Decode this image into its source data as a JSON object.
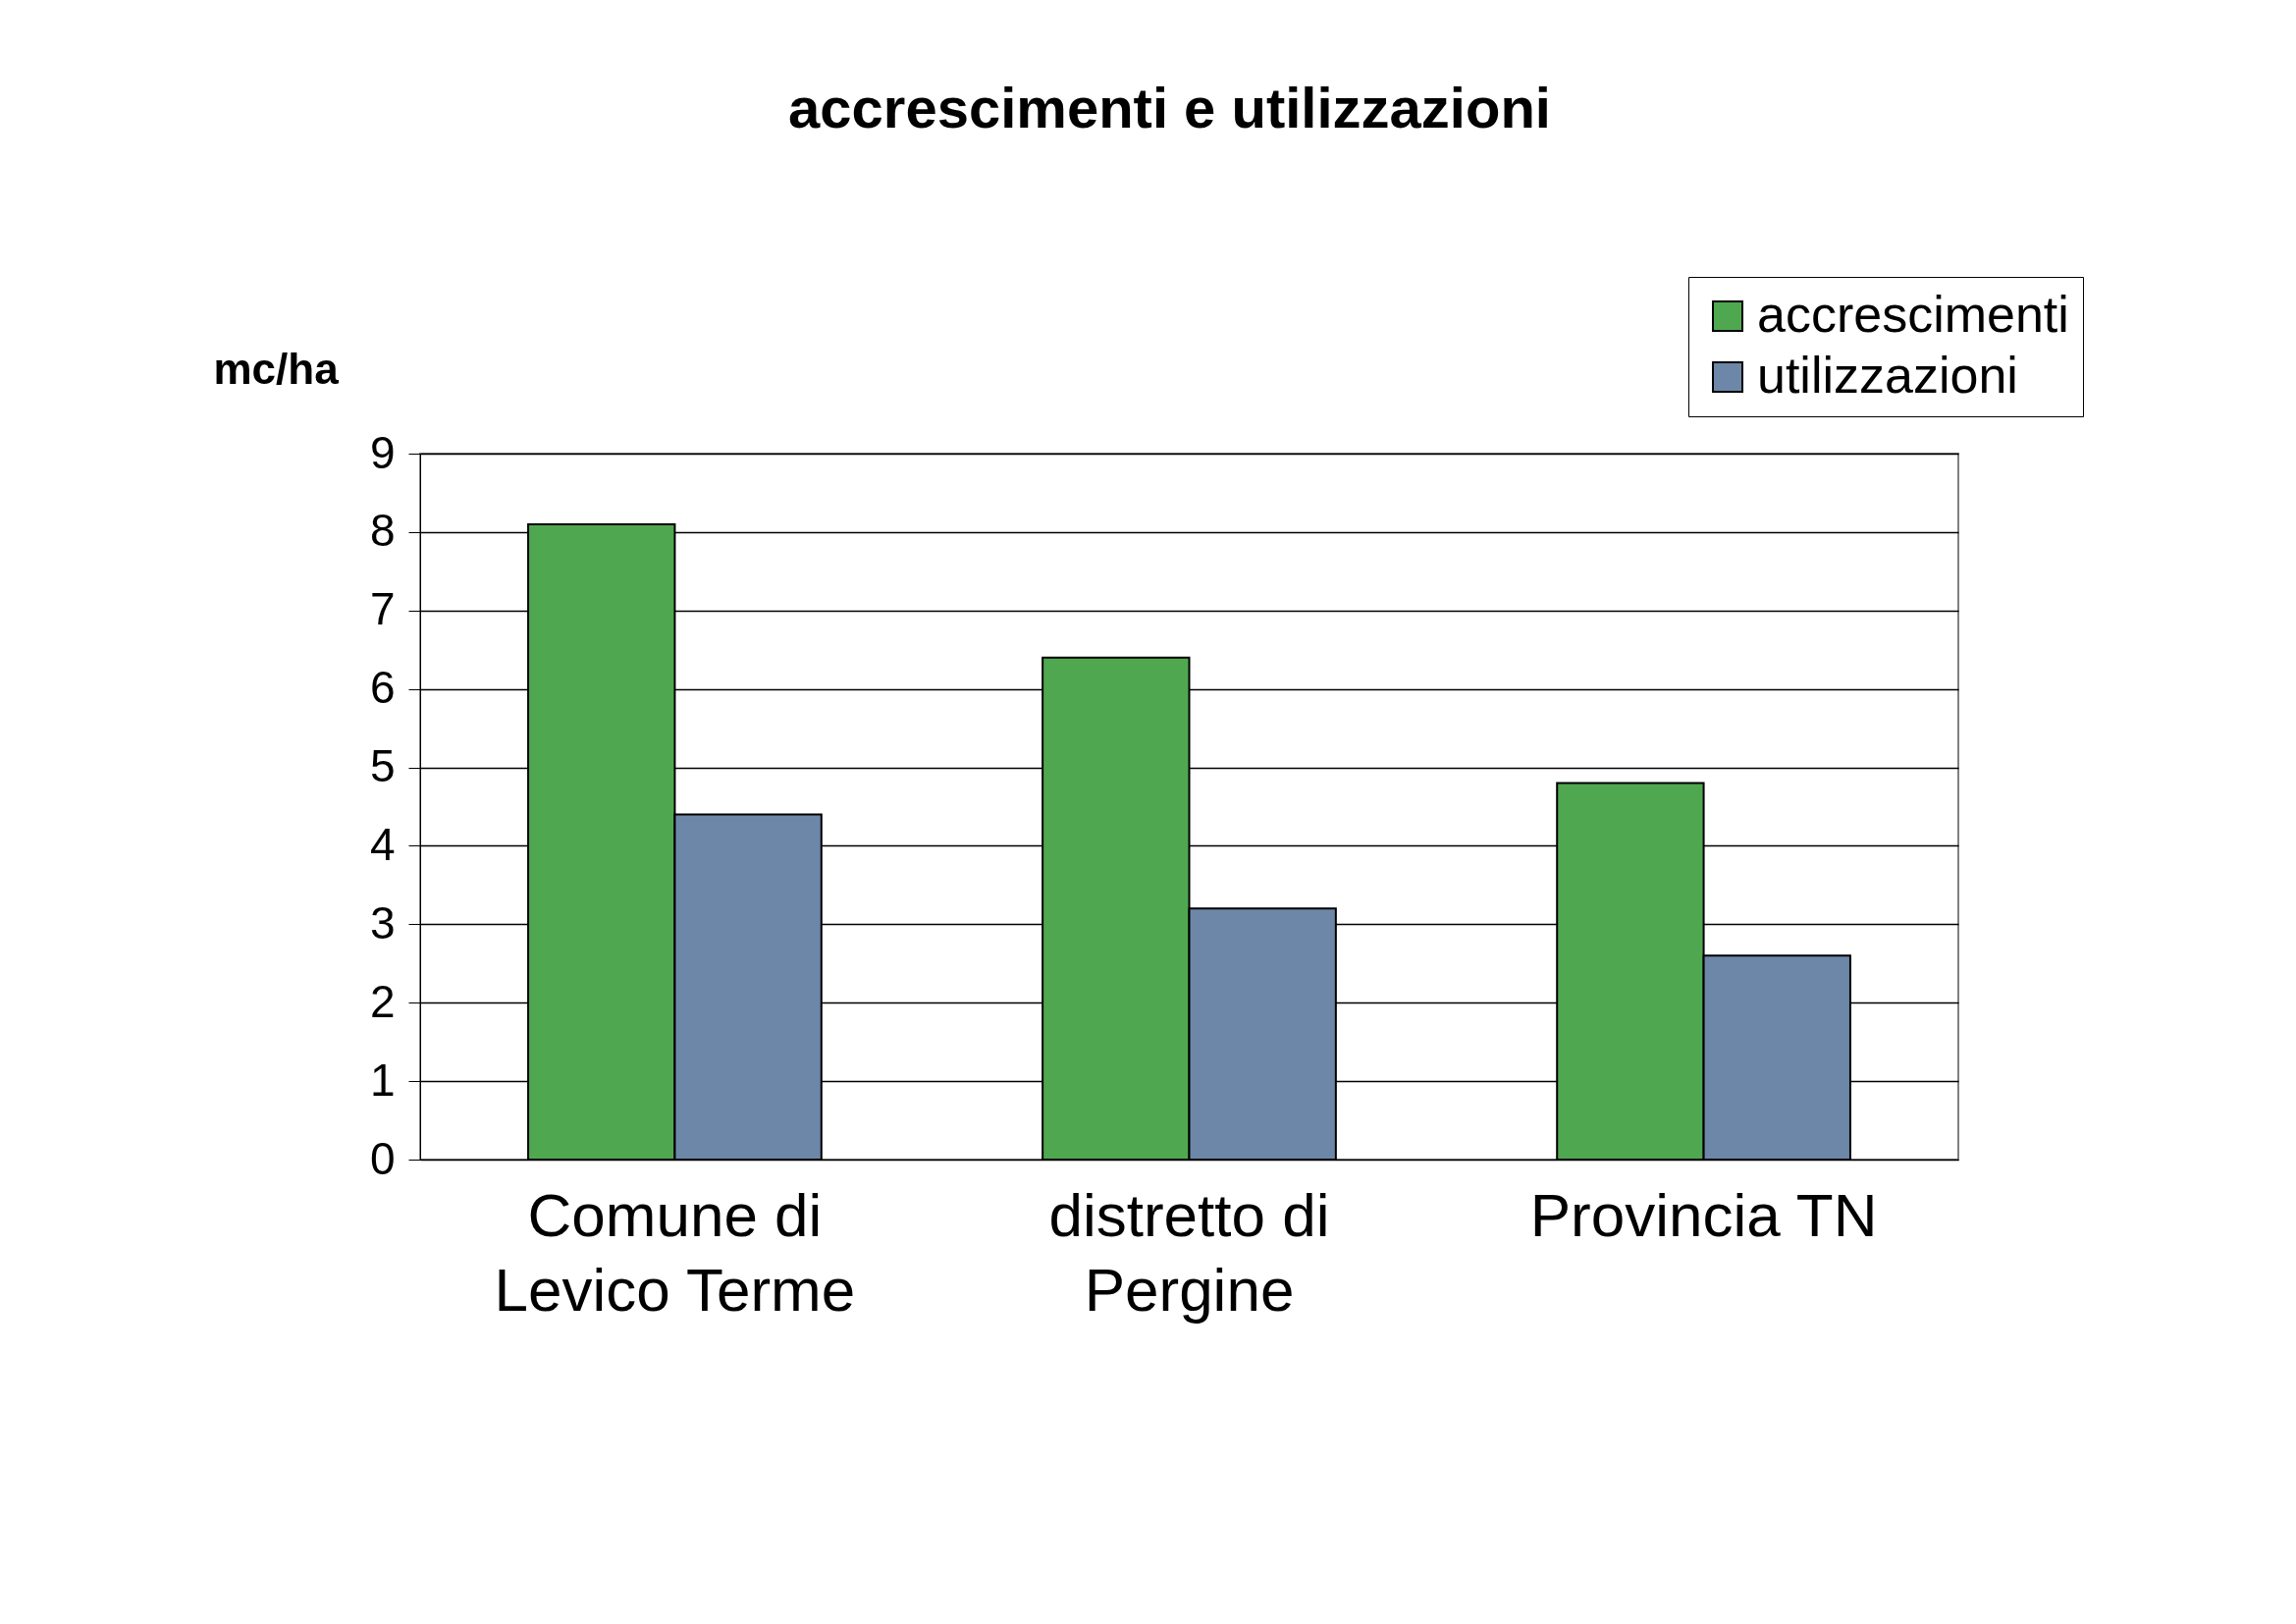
{
  "chart_data": {
    "type": "bar",
    "title": "accrescimenti e utilizzazioni",
    "ylabel": "mc/ha",
    "categories": [
      "Comune di Levico Terme",
      "distretto di Pergine",
      "Provincia TN"
    ],
    "series": [
      {
        "name": "accrescimenti",
        "color": "#4fa84f",
        "values": [
          8.1,
          6.4,
          4.8
        ]
      },
      {
        "name": "utilizzazioni",
        "color": "#6d87a8",
        "values": [
          4.4,
          3.2,
          2.6
        ]
      }
    ],
    "ylim": [
      0,
      9
    ],
    "yticks": [
      0,
      1,
      2,
      3,
      4,
      5,
      6,
      7,
      8,
      9
    ],
    "grid": "y",
    "legend": "top right"
  }
}
